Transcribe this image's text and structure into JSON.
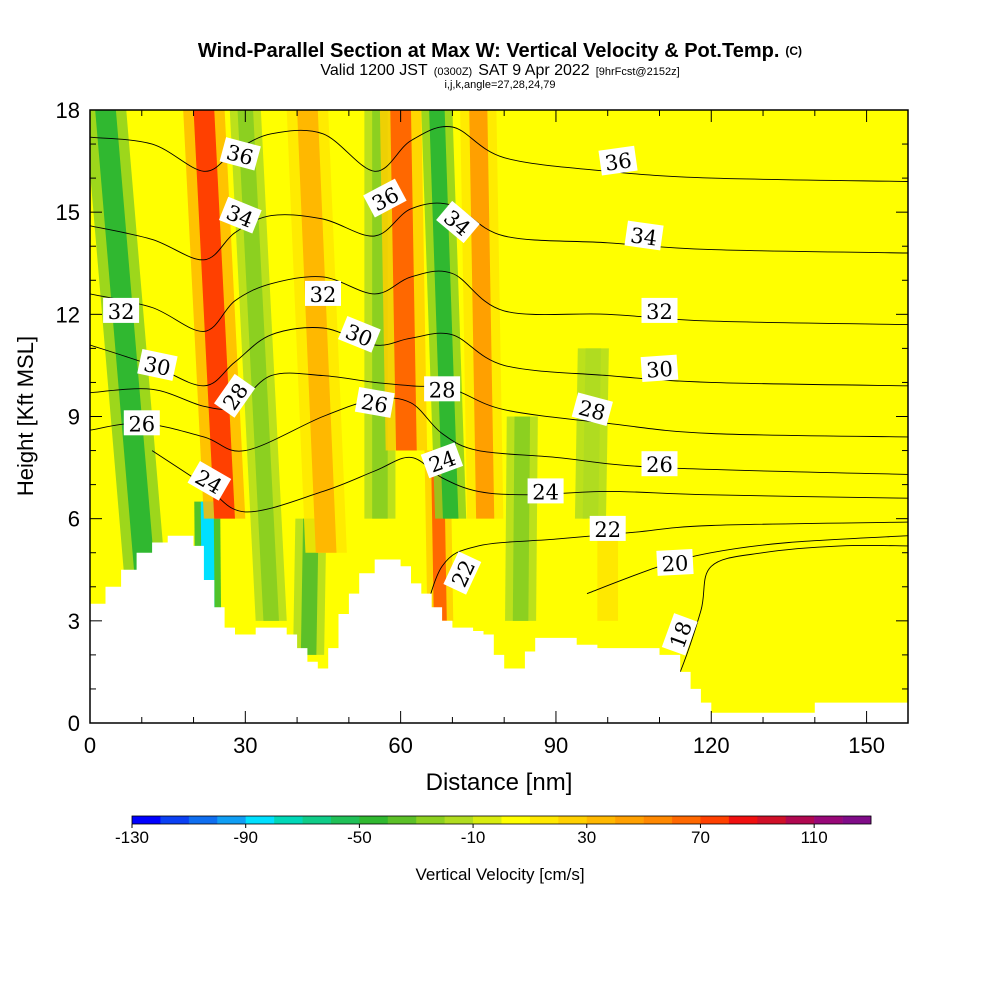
{
  "chart_data": {
    "type": "heatmap",
    "title": "Wind-Parallel Section at Max W: Vertical Velocity & Pot.Temp.",
    "title_mark": "(C)",
    "subtitle_prefix": "Valid 1200 JST",
    "subtitle_utc": "(0300Z)",
    "subtitle_date": "SAT 9 Apr 2022",
    "subtitle_fcst": "[9hrFcst@2152z]",
    "subtitle2": "i,j,k,angle=27,28,24,79",
    "xlabel": "Distance [nm]",
    "ylabel": "Height [Kft MSL]",
    "xlim": [
      0,
      158
    ],
    "ylim": [
      0,
      18
    ],
    "x_ticks": [
      "0",
      "30",
      "60",
      "90",
      "120",
      "150"
    ],
    "x_tick_values": [
      0,
      30,
      60,
      90,
      120,
      150
    ],
    "y_ticks": [
      "0",
      "3",
      "6",
      "9",
      "12",
      "15",
      "18"
    ],
    "y_tick_values": [
      0,
      3,
      6,
      9,
      12,
      15,
      18
    ],
    "colorbar": {
      "label": "Vertical Velocity [cm/s]",
      "min": -130,
      "max": 120,
      "step": 10,
      "tick_labels": [
        "-130",
        "-90",
        "-50",
        "-10",
        "30",
        "70",
        "110"
      ],
      "tick_values": [
        -130,
        -90,
        -50,
        -10,
        30,
        70,
        110
      ],
      "colors": [
        "#0000ff",
        "#0b40f4",
        "#0f6ef0",
        "#109ef4",
        "#00e0ff",
        "#00d8b8",
        "#10cc88",
        "#20c058",
        "#30b830",
        "#5cc028",
        "#8cd020",
        "#b0dc20",
        "#d8ec10",
        "#ffff00",
        "#ffe800",
        "#ffd000",
        "#ffb800",
        "#ffa000",
        "#ff8800",
        "#ff6800",
        "#ff4000",
        "#f01010",
        "#d01028",
        "#b00850",
        "#980878",
        "#800c88"
      ]
    },
    "terrain_kft": [
      [
        0,
        3.5
      ],
      [
        3,
        4
      ],
      [
        6,
        4.5
      ],
      [
        9,
        5
      ],
      [
        12,
        5.3
      ],
      [
        15,
        5.5
      ],
      [
        18,
        5.5
      ],
      [
        20,
        5.2
      ],
      [
        22,
        4.2
      ],
      [
        24,
        3.4
      ],
      [
        26,
        2.8
      ],
      [
        28,
        2.6
      ],
      [
        30,
        2.6
      ],
      [
        32,
        2.8
      ],
      [
        35,
        2.8
      ],
      [
        38,
        2.6
      ],
      [
        40,
        2.2
      ],
      [
        42,
        1.8
      ],
      [
        44,
        1.6
      ],
      [
        46,
        2.2
      ],
      [
        48,
        3.2
      ],
      [
        50,
        3.8
      ],
      [
        52,
        4.4
      ],
      [
        55,
        4.8
      ],
      [
        58,
        4.8
      ],
      [
        60,
        4.6
      ],
      [
        62,
        4.1
      ],
      [
        64,
        3.8
      ],
      [
        66,
        3.4
      ],
      [
        68,
        3
      ],
      [
        70,
        2.8
      ],
      [
        72,
        2.8
      ],
      [
        74,
        2.7
      ],
      [
        76,
        2.6
      ],
      [
        78,
        2
      ],
      [
        80,
        1.6
      ],
      [
        82,
        1.6
      ],
      [
        84,
        2.1
      ],
      [
        86,
        2.5
      ],
      [
        90,
        2.5
      ],
      [
        94,
        2.3
      ],
      [
        98,
        2.2
      ],
      [
        102,
        2.2
      ],
      [
        106,
        2.2
      ],
      [
        110,
        2
      ],
      [
        114,
        1.5
      ],
      [
        116,
        1
      ],
      [
        118,
        0.6
      ],
      [
        120,
        0.3
      ],
      [
        130,
        0.3
      ],
      [
        136,
        0.3
      ],
      [
        140,
        0.6
      ],
      [
        150,
        0.6
      ],
      [
        158,
        0.6
      ]
    ],
    "w_bands": [
      {
        "x_bottom": 23,
        "x_top": 22,
        "width_nm": 2.5,
        "value": -90,
        "y_from": 3,
        "y_to": 6.5
      },
      {
        "x_bottom": 13,
        "x_top": 3,
        "width_nm": 4,
        "value": -45,
        "y_from": 4,
        "y_to": 18
      },
      {
        "x_bottom": 28,
        "x_top": 22,
        "width_nm": 4,
        "value": 75,
        "y_from": 6,
        "y_to": 18
      },
      {
        "x_bottom": 36,
        "x_top": 30,
        "width_nm": 3,
        "value": -30,
        "y_from": 3,
        "y_to": 18
      },
      {
        "x_bottom": 42,
        "x_top": 44,
        "width_nm": 3,
        "value": -40,
        "y_from": 2,
        "y_to": 6
      },
      {
        "x_bottom": 47,
        "x_top": 42,
        "width_nm": 4,
        "value": 35,
        "y_from": 5,
        "y_to": 18
      },
      {
        "x_bottom": 56,
        "x_top": 56,
        "width_nm": 3,
        "value": -30,
        "y_from": 6,
        "y_to": 18
      },
      {
        "x_bottom": 62,
        "x_top": 60,
        "width_nm": 4,
        "value": 60,
        "y_from": 8,
        "y_to": 18
      },
      {
        "x_bottom": 68,
        "x_top": 66,
        "width_nm": 2.5,
        "value": 60,
        "y_from": 3,
        "y_to": 8
      },
      {
        "x_bottom": 71,
        "x_top": 67,
        "width_nm": 3,
        "value": -45,
        "y_from": 6,
        "y_to": 18
      },
      {
        "x_bottom": 77,
        "x_top": 75,
        "width_nm": 3.5,
        "value": 40,
        "y_from": 6,
        "y_to": 18
      },
      {
        "x_bottom": 83,
        "x_top": 84,
        "width_nm": 3,
        "value": -25,
        "y_from": 3,
        "y_to": 9
      },
      {
        "x_bottom": 96,
        "x_top": 98,
        "width_nm": 3,
        "value": -15,
        "y_from": 6,
        "y_to": 11
      },
      {
        "x_bottom": 100,
        "x_top": 100,
        "width_nm": 4,
        "value": 15,
        "y_from": 3,
        "y_to": 6
      }
    ],
    "theta_contours": [
      {
        "label": "18",
        "points": [
          [
            110,
            0.3
          ],
          [
            114,
            1.5
          ],
          [
            118,
            3.3
          ],
          [
            120,
            4.6
          ],
          [
            130,
            5
          ],
          [
            145,
            5.2
          ],
          [
            158,
            5.2
          ]
        ]
      },
      {
        "label": "20",
        "points": [
          [
            96,
            3.8
          ],
          [
            110,
            4.6
          ],
          [
            120,
            5
          ],
          [
            135,
            5.3
          ],
          [
            158,
            5.5
          ]
        ]
      },
      {
        "label": "22",
        "points": [
          [
            64,
            2.8
          ],
          [
            68,
            4.6
          ],
          [
            75,
            5.2
          ],
          [
            90,
            5.4
          ],
          [
            105,
            5.6
          ],
          [
            120,
            5.8
          ],
          [
            158,
            5.9
          ]
        ]
      },
      {
        "label": "24",
        "points": [
          [
            12,
            8
          ],
          [
            22,
            7
          ],
          [
            30,
            6.2
          ],
          [
            45,
            6.8
          ],
          [
            55,
            7.4
          ],
          [
            62,
            7.8
          ],
          [
            68,
            7.2
          ],
          [
            75,
            6.8
          ],
          [
            85,
            6.7
          ],
          [
            100,
            6.8
          ],
          [
            120,
            6.7
          ],
          [
            158,
            6.6
          ]
        ]
      },
      {
        "label": "26",
        "points": [
          [
            0,
            8.6
          ],
          [
            10,
            8.8
          ],
          [
            22,
            8.4
          ],
          [
            30,
            8
          ],
          [
            45,
            9
          ],
          [
            55,
            9.5
          ],
          [
            62,
            9.4
          ],
          [
            68,
            8.5
          ],
          [
            75,
            8
          ],
          [
            90,
            7.8
          ],
          [
            110,
            7.5
          ],
          [
            158,
            7.3
          ]
        ]
      },
      {
        "label": "28",
        "points": [
          [
            0,
            9.7
          ],
          [
            12,
            9.8
          ],
          [
            22,
            9.3
          ],
          [
            28,
            9.3
          ],
          [
            35,
            10.2
          ],
          [
            45,
            10.2
          ],
          [
            55,
            10
          ],
          [
            62,
            9.9
          ],
          [
            70,
            9.8
          ],
          [
            80,
            9.2
          ],
          [
            100,
            8.8
          ],
          [
            120,
            8.5
          ],
          [
            158,
            8.4
          ]
        ]
      },
      {
        "label": "30",
        "points": [
          [
            0,
            11.1
          ],
          [
            12,
            10.5
          ],
          [
            22,
            9.9
          ],
          [
            28,
            10.6
          ],
          [
            35,
            11.4
          ],
          [
            45,
            11.6
          ],
          [
            55,
            11.1
          ],
          [
            62,
            11.3
          ],
          [
            70,
            11.4
          ],
          [
            80,
            10.5
          ],
          [
            100,
            10.2
          ],
          [
            120,
            10
          ],
          [
            158,
            9.9
          ]
        ]
      },
      {
        "label": "32",
        "points": [
          [
            0,
            12.6
          ],
          [
            12,
            12.2
          ],
          [
            22,
            11.5
          ],
          [
            28,
            12.4
          ],
          [
            35,
            12.9
          ],
          [
            45,
            13.1
          ],
          [
            55,
            12.6
          ],
          [
            62,
            13.1
          ],
          [
            70,
            13.2
          ],
          [
            80,
            12.1
          ],
          [
            100,
            12
          ],
          [
            120,
            11.8
          ],
          [
            158,
            11.7
          ]
        ]
      },
      {
        "label": "34",
        "points": [
          [
            0,
            14.6
          ],
          [
            12,
            14.2
          ],
          [
            22,
            13.6
          ],
          [
            28,
            14.4
          ],
          [
            35,
            14.9
          ],
          [
            45,
            14.8
          ],
          [
            55,
            14.3
          ],
          [
            62,
            15.1
          ],
          [
            70,
            15.2
          ],
          [
            80,
            14.3
          ],
          [
            100,
            14.1
          ],
          [
            120,
            13.9
          ],
          [
            158,
            13.8
          ]
        ]
      },
      {
        "label": "36",
        "points": [
          [
            0,
            17.2
          ],
          [
            12,
            17
          ],
          [
            22,
            16.2
          ],
          [
            28,
            16.8
          ],
          [
            35,
            17.3
          ],
          [
            45,
            17.3
          ],
          [
            55,
            16.2
          ],
          [
            62,
            17.1
          ],
          [
            70,
            17.5
          ],
          [
            80,
            16.6
          ],
          [
            100,
            16.2
          ],
          [
            120,
            16
          ],
          [
            158,
            15.9
          ]
        ]
      }
    ],
    "contour_labels": [
      {
        "text": "36",
        "x": 29,
        "y": 16.7,
        "angle": 15
      },
      {
        "text": "36",
        "x": 57,
        "y": 15.4,
        "angle": -28
      },
      {
        "text": "36",
        "x": 102,
        "y": 16.5,
        "angle": -8
      },
      {
        "text": "34",
        "x": 29,
        "y": 14.9,
        "angle": 22
      },
      {
        "text": "34",
        "x": 71,
        "y": 14.7,
        "angle": 40
      },
      {
        "text": "34",
        "x": 107,
        "y": 14.3,
        "angle": 8
      },
      {
        "text": "32",
        "x": 6,
        "y": 12.1,
        "angle": 0
      },
      {
        "text": "32",
        "x": 45,
        "y": 12.6,
        "angle": 0
      },
      {
        "text": "32",
        "x": 110,
        "y": 12.1,
        "angle": 0
      },
      {
        "text": "30",
        "x": 13,
        "y": 10.5,
        "angle": 12
      },
      {
        "text": "30",
        "x": 52,
        "y": 11.4,
        "angle": 22
      },
      {
        "text": "30",
        "x": 110,
        "y": 10.4,
        "angle": -4
      },
      {
        "text": "28",
        "x": 28,
        "y": 9.6,
        "angle": -55
      },
      {
        "text": "28",
        "x": 68,
        "y": 9.8,
        "angle": 0
      },
      {
        "text": "28",
        "x": 97,
        "y": 9.2,
        "angle": 15
      },
      {
        "text": "26",
        "x": 10,
        "y": 8.8,
        "angle": 0
      },
      {
        "text": "26",
        "x": 55,
        "y": 9.4,
        "angle": 10
      },
      {
        "text": "26",
        "x": 110,
        "y": 7.6,
        "angle": 0
      },
      {
        "text": "24",
        "x": 23,
        "y": 7.1,
        "angle": 30
      },
      {
        "text": "24",
        "x": 68,
        "y": 7.7,
        "angle": -20
      },
      {
        "text": "24",
        "x": 88,
        "y": 6.8,
        "angle": 0
      },
      {
        "text": "22",
        "x": 100,
        "y": 5.7,
        "angle": 0
      },
      {
        "text": "22",
        "x": 72,
        "y": 4.4,
        "angle": -65
      },
      {
        "text": "20",
        "x": 113,
        "y": 4.7,
        "angle": -3
      },
      {
        "text": "18",
        "x": 114,
        "y": 2.6,
        "angle": -70
      }
    ]
  }
}
